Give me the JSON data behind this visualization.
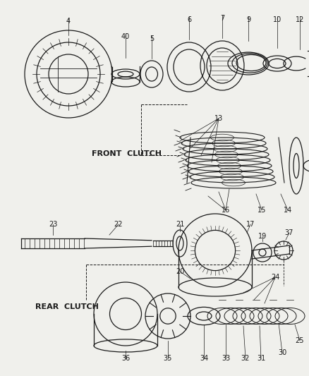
{
  "background_color": "#f0f0ec",
  "line_color": "#1a1a1a",
  "text_color": "#1a1a1a",
  "figure_size": [
    4.39,
    5.33
  ],
  "dpi": 100,
  "front_clutch_label": "FRONT  CLUTCH",
  "rear_clutch_label": "REAR  CLUTCH"
}
